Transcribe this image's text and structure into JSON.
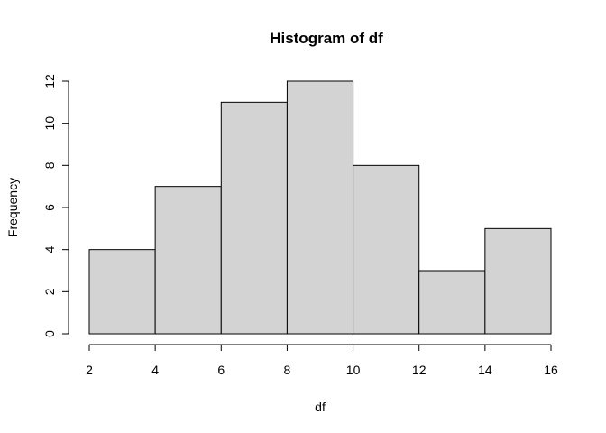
{
  "chart_data": {
    "type": "bar",
    "title": "Histogram of df",
    "xlabel": "df",
    "ylabel": "Frequency",
    "bins": [
      {
        "start": 2,
        "end": 4,
        "value": 4
      },
      {
        "start": 4,
        "end": 6,
        "value": 7
      },
      {
        "start": 6,
        "end": 8,
        "value": 11
      },
      {
        "start": 8,
        "end": 10,
        "value": 12
      },
      {
        "start": 10,
        "end": 12,
        "value": 8
      },
      {
        "start": 12,
        "end": 14,
        "value": 3
      },
      {
        "start": 14,
        "end": 16,
        "value": 5
      }
    ],
    "xlim": [
      2,
      16
    ],
    "ylim": [
      0,
      12
    ],
    "x_ticks": [
      "2",
      "4",
      "6",
      "8",
      "10",
      "12",
      "14",
      "16"
    ],
    "y_ticks": [
      "0",
      "2",
      "4",
      "6",
      "8",
      "10",
      "12"
    ],
    "grid": false,
    "colors": {
      "bar_fill": "#d3d3d3",
      "bar_stroke": "#000000"
    }
  }
}
